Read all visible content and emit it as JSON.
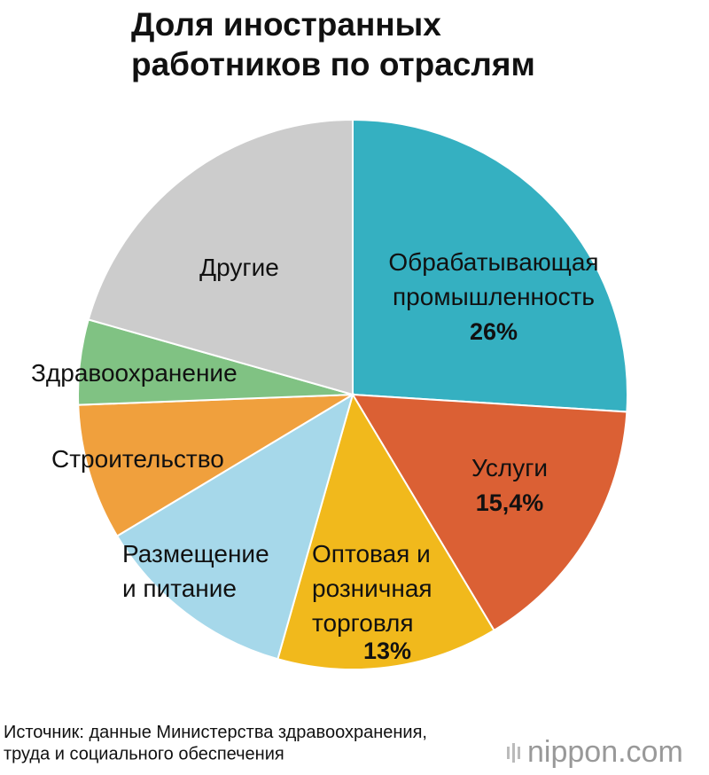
{
  "chart_data": {
    "type": "pie",
    "title": "Доля иностранных\nработников по отраслям",
    "categories": [
      "Обрабатывающая\nпромышленность",
      "Услуги",
      "Оптовая и\nрозничная\nторговля",
      "Размещение\nи питание",
      "Строительство",
      "Здравоохранение",
      "Другие"
    ],
    "values": [
      26,
      15.4,
      13,
      12,
      8,
      5,
      20.6
    ],
    "value_labels": [
      "26%",
      "15,4%",
      "13%",
      null,
      null,
      null,
      null
    ],
    "colors": [
      "#35b0c1",
      "#db6034",
      "#f1b91c",
      "#a6d8ea",
      "#f0a03d",
      "#80c283",
      "#cccccc"
    ],
    "source": "Источник: данные Министерства здравоохранения,\nтруда и социального обеспечения",
    "logo": "nippon.com"
  }
}
